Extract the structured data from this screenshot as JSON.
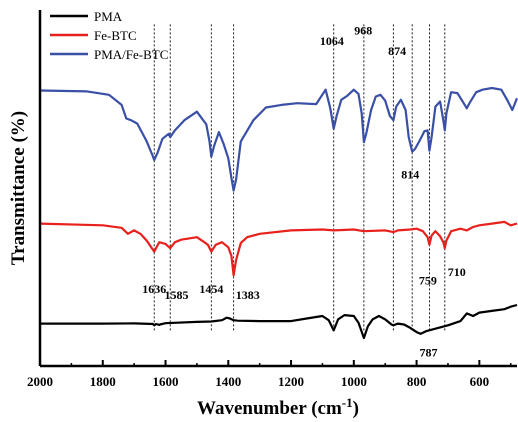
{
  "chart_data": {
    "type": "line",
    "title": "",
    "xlabel": "Wavenumber (cm",
    "xlabel_sup": "-1",
    "xlabel_tail": ")",
    "ylabel": "Transmittance (%)",
    "xlim": [
      2000,
      480
    ],
    "x_reversed": true,
    "xticks": [
      2000,
      1800,
      1600,
      1400,
      1200,
      1000,
      800,
      600
    ],
    "xtick_labels": [
      "2000",
      "1800",
      "1600",
      "1400",
      "1200",
      "1000",
      "800",
      "600"
    ],
    "y_ticks_shown": false,
    "legend_position": "top-left",
    "series": [
      {
        "name": "PMA",
        "color": "#000000",
        "x": [
          2000,
          1800,
          1700,
          1640,
          1636,
          1630,
          1620,
          1618,
          1600,
          1500,
          1454,
          1420,
          1405,
          1395,
          1383,
          1370,
          1300,
          1200,
          1150,
          1100,
          1080,
          1064,
          1050,
          1030,
          1000,
          985,
          968,
          955,
          940,
          920,
          900,
          880,
          874,
          860,
          840,
          820,
          800,
          787,
          770,
          740,
          700,
          660,
          640,
          620,
          600,
          560,
          520,
          500,
          480
        ],
        "y": [
          0,
          0,
          0.02,
          -0.05,
          -0.2,
          -0.05,
          -0.15,
          -0.1,
          0.05,
          0.2,
          0.25,
          0.4,
          0.7,
          0.6,
          0.4,
          0.35,
          0.3,
          0.3,
          0.6,
          0.9,
          0.4,
          -0.8,
          0.5,
          1.0,
          0.9,
          0.1,
          -1.7,
          -0.3,
          0.5,
          0.9,
          0.5,
          -0.1,
          -0.2,
          0.0,
          -0.1,
          -0.5,
          -1.0,
          -1.2,
          -0.9,
          -0.6,
          -0.2,
          0.3,
          1.2,
          0.9,
          1.3,
          1.5,
          1.7,
          2.0,
          2.2
        ]
      },
      {
        "name": "Fe-BTC",
        "color": "#e8211c",
        "x": [
          2000,
          1800,
          1740,
          1720,
          1700,
          1680,
          1660,
          1636,
          1620,
          1600,
          1585,
          1570,
          1550,
          1500,
          1480,
          1465,
          1454,
          1440,
          1420,
          1400,
          1390,
          1383,
          1375,
          1360,
          1340,
          1300,
          1200,
          1100,
          1064,
          1000,
          968,
          900,
          874,
          860,
          820,
          800,
          780,
          765,
          759,
          752,
          740,
          725,
          715,
          710,
          705,
          690,
          660,
          640,
          620,
          600,
          560,
          520,
          500,
          480
        ],
        "y": [
          11.8,
          11.6,
          11.3,
          10.6,
          11.0,
          10.6,
          9.8,
          8.5,
          9.6,
          9.4,
          8.9,
          9.6,
          9.9,
          10.2,
          9.7,
          9.3,
          8.5,
          9.3,
          9.6,
          9.0,
          8.0,
          5.7,
          7.5,
          9.5,
          10.2,
          10.6,
          11.0,
          11.1,
          11.0,
          11.1,
          10.9,
          11.0,
          10.8,
          11.0,
          11.1,
          11.2,
          10.9,
          10.2,
          9.3,
          10.4,
          10.9,
          10.3,
          9.6,
          8.9,
          9.8,
          10.9,
          11.2,
          11.0,
          11.4,
          11.6,
          11.8,
          12.0,
          11.6,
          11.8
        ]
      },
      {
        "name": "PMA/Fe-BTC",
        "color": "#3a4fa6",
        "x": [
          2000,
          1850,
          1780,
          1740,
          1725,
          1710,
          1690,
          1660,
          1640,
          1636,
          1625,
          1610,
          1590,
          1585,
          1570,
          1540,
          1500,
          1470,
          1460,
          1454,
          1445,
          1430,
          1415,
          1400,
          1390,
          1383,
          1375,
          1360,
          1320,
          1280,
          1230,
          1180,
          1120,
          1090,
          1075,
          1064,
          1055,
          1040,
          1020,
          1000,
          985,
          975,
          968,
          960,
          945,
          930,
          915,
          900,
          885,
          874,
          865,
          850,
          835,
          825,
          814,
          805,
          790,
          775,
          765,
          759,
          752,
          740,
          725,
          715,
          710,
          705,
          690,
          670,
          650,
          640,
          630,
          610,
          590,
          560,
          530,
          510,
          495,
          480
        ],
        "y": [
          27.5,
          27.4,
          27.0,
          25.8,
          24.2,
          24.0,
          23.6,
          21.5,
          19.7,
          19.3,
          20.2,
          21.8,
          22.4,
          22.0,
          22.8,
          24.0,
          25.0,
          23.5,
          21.5,
          19.7,
          21.0,
          22.6,
          21.2,
          19.5,
          17.2,
          15.7,
          17.0,
          21.5,
          24.0,
          25.5,
          25.8,
          26.0,
          25.9,
          27.6,
          25.4,
          23.0,
          24.5,
          26.4,
          26.9,
          27.6,
          27.1,
          24.8,
          21.4,
          22.5,
          25.2,
          26.8,
          27.0,
          26.3,
          24.5,
          24.0,
          25.6,
          26.4,
          25.2,
          22.0,
          20.3,
          20.6,
          21.6,
          22.7,
          22.8,
          20.4,
          22.0,
          25.6,
          26.2,
          24.0,
          22.8,
          24.8,
          27.3,
          27.2,
          26.0,
          25.4,
          26.1,
          27.3,
          27.6,
          27.8,
          27.6,
          26.3,
          25.2,
          26.6
        ]
      }
    ],
    "vlines": [
      1636,
      1585,
      1454,
      1383,
      1064,
      968,
      874,
      814,
      759,
      710
    ],
    "annotations": [
      {
        "text": "1636",
        "x": 1636,
        "y": 3.6
      },
      {
        "text": "1585",
        "x": 1565,
        "y": 2.9
      },
      {
        "text": "1454",
        "x": 1454,
        "y": 3.6
      },
      {
        "text": "1383",
        "x": 1338,
        "y": 2.9
      },
      {
        "text": "759",
        "x": 764,
        "y": 4.6
      },
      {
        "text": "710",
        "x": 672,
        "y": 5.6
      },
      {
        "text": "814",
        "x": 820,
        "y": 17.1
      },
      {
        "text": "787",
        "x": 762,
        "y": -3.9
      },
      {
        "text": "1064",
        "x": 1070,
        "y": 32.9
      },
      {
        "text": "968",
        "x": 970,
        "y": 34.1
      },
      {
        "text": "874",
        "x": 862,
        "y": 31.7
      }
    ]
  }
}
